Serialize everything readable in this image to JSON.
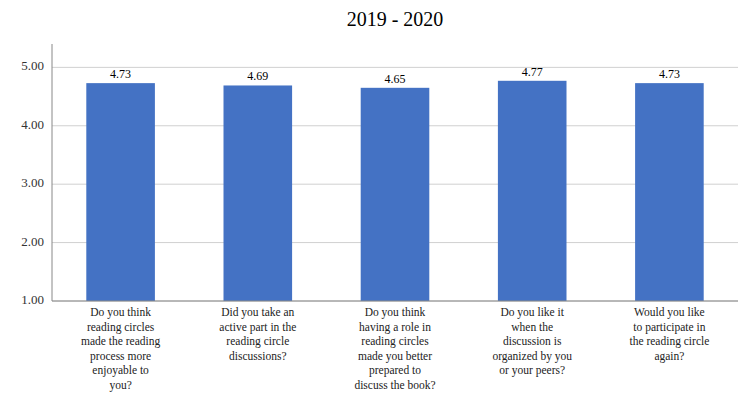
{
  "chart_data": {
    "type": "bar",
    "title": "2019 - 2020",
    "categories": [
      "Do you think\nreading circles\nmade the reading\nprocess more\nenjoyable to\nyou?",
      "Did you take an\nactive part in the\nreading circle\ndiscussions?",
      "Do you think\nhaving a role in\nreading circles\nmade you better\nprepared to\ndiscuss the book?",
      "Do you like it\nwhen the\ndiscussion is\norganized by you\nor your peers?",
      "Would you like\nto participate in\nthe reading circle\nagain?"
    ],
    "values": [
      4.73,
      4.69,
      4.65,
      4.77,
      4.73
    ],
    "color": "#4472C4",
    "ylim": [
      1.0,
      5.4
    ],
    "yticks": [
      {
        "value": 1.0,
        "label": "1.00"
      },
      {
        "value": 2.0,
        "label": "2.00"
      },
      {
        "value": 3.0,
        "label": "3.00"
      },
      {
        "value": 4.0,
        "label": "4.00"
      },
      {
        "value": 5.0,
        "label": "5.00"
      }
    ],
    "grid": true,
    "data_labels": true
  }
}
